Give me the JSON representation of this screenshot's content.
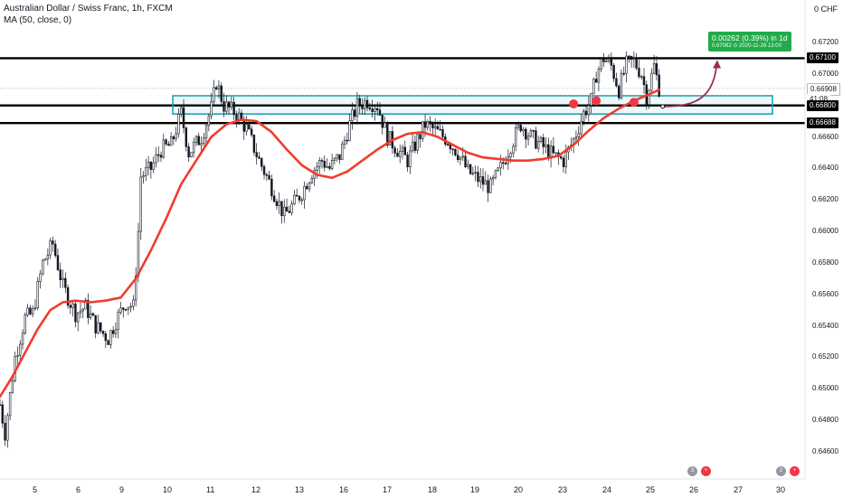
{
  "header": {
    "title": "Australian Dollar / Swiss Franc, 1h, FXCM",
    "indicator": "MA (50, close, 0)",
    "currency": "0 CHF"
  },
  "colors": {
    "up": "#131722",
    "ma": "#f23b2e",
    "zone": "#25a3b0",
    "arrow": "#9c2a5a",
    "green_tag": "#22ab4b"
  },
  "callout": {
    "line1": "0.00262 (0.39%) in 1d",
    "line2": "0.67082 ⊙ 2020-11-26 13:00"
  },
  "price_tags": [
    {
      "value": "0.67100",
      "kind": "level"
    },
    {
      "value": "0.66908",
      "kind": "last"
    },
    {
      "value": "41:08",
      "kind": "timer"
    },
    {
      "value": "0.66800",
      "kind": "level"
    },
    {
      "value": "0.66688",
      "kind": "level"
    }
  ],
  "events": [
    {
      "day": "26",
      "count": "3"
    },
    {
      "day": "30",
      "count": "2"
    }
  ],
  "chart_data": {
    "type": "candlestick",
    "title": "Australian Dollar / Swiss Franc, 1h, FXCM",
    "ylim": [
      0.6458,
      0.673
    ],
    "yticks": [
      "0.67200",
      "0.67000",
      "0.66800",
      "0.66600",
      "0.66400",
      "0.66200",
      "0.66000",
      "0.65800",
      "0.65600",
      "0.65400",
      "0.65200",
      "0.65000",
      "0.64800",
      "0.64600"
    ],
    "xticks": [
      "5",
      "6",
      "9",
      "10",
      "11",
      "12",
      "13",
      "16",
      "17",
      "18",
      "19",
      "20",
      "23",
      "24",
      "25",
      "26",
      "27",
      "30"
    ],
    "horizontal_levels": [
      0.671,
      0.668,
      0.66688
    ],
    "zone": [
      0.6678,
      0.6685
    ],
    "last_price": 0.66908,
    "target_price": 0.67082,
    "price_path": [
      [
        0,
        0.649
      ],
      [
        2,
        0.6472
      ],
      [
        6,
        0.652
      ],
      [
        10,
        0.6545
      ],
      [
        13,
        0.6548
      ],
      [
        17,
        0.658
      ],
      [
        21,
        0.6592
      ],
      [
        25,
        0.6565
      ],
      [
        30,
        0.6548
      ],
      [
        34,
        0.6552
      ],
      [
        38,
        0.654
      ],
      [
        43,
        0.6532
      ],
      [
        46,
        0.6543
      ],
      [
        50,
        0.6555
      ],
      [
        53,
        0.6552
      ],
      [
        55,
        0.66
      ],
      [
        56,
        0.6635
      ],
      [
        60,
        0.664
      ],
      [
        64,
        0.6652
      ],
      [
        68,
        0.6655
      ],
      [
        72,
        0.6675
      ],
      [
        75,
        0.665
      ],
      [
        80,
        0.666
      ],
      [
        84,
        0.6678
      ],
      [
        86,
        0.6695
      ],
      [
        89,
        0.668
      ],
      [
        94,
        0.6675
      ],
      [
        98,
        0.6665
      ],
      [
        103,
        0.6645
      ],
      [
        108,
        0.6628
      ],
      [
        113,
        0.661
      ],
      [
        117,
        0.6618
      ],
      [
        120,
        0.6625
      ],
      [
        124,
        0.6638
      ],
      [
        128,
        0.6645
      ],
      [
        131,
        0.664
      ],
      [
        135,
        0.6648
      ],
      [
        139,
        0.6668
      ],
      [
        142,
        0.668
      ],
      [
        146,
        0.6683
      ],
      [
        150,
        0.668
      ],
      [
        154,
        0.666
      ],
      [
        158,
        0.6652
      ],
      [
        162,
        0.6645
      ],
      [
        165,
        0.6655
      ],
      [
        169,
        0.6668
      ],
      [
        173,
        0.6664
      ],
      [
        178,
        0.6658
      ],
      [
        182,
        0.665
      ],
      [
        186,
        0.6638
      ],
      [
        191,
        0.6632
      ],
      [
        195,
        0.6628
      ],
      [
        199,
        0.664
      ],
      [
        203,
        0.6655
      ],
      [
        207,
        0.6668
      ],
      [
        211,
        0.666
      ],
      [
        215,
        0.6655
      ],
      [
        220,
        0.6648
      ],
      [
        224,
        0.6645
      ],
      [
        228,
        0.6658
      ],
      [
        232,
        0.6675
      ],
      [
        235,
        0.6683
      ],
      [
        237,
        0.67
      ],
      [
        240,
        0.671
      ],
      [
        243,
        0.6705
      ],
      [
        246,
        0.669
      ],
      [
        249,
        0.6706
      ],
      [
        252,
        0.6708
      ],
      [
        255,
        0.67
      ],
      [
        257,
        0.6686
      ],
      [
        260,
        0.6705
      ],
      [
        262,
        0.6691
      ]
    ],
    "ma_path": [
      [
        0,
        0.6495
      ],
      [
        5,
        0.6508
      ],
      [
        10,
        0.6523
      ],
      [
        15,
        0.6538
      ],
      [
        20,
        0.655
      ],
      [
        25,
        0.6555
      ],
      [
        30,
        0.6556
      ],
      [
        36,
        0.6555
      ],
      [
        42,
        0.6556
      ],
      [
        48,
        0.6558
      ],
      [
        54,
        0.657
      ],
      [
        60,
        0.6588
      ],
      [
        66,
        0.6608
      ],
      [
        72,
        0.663
      ],
      [
        78,
        0.6645
      ],
      [
        84,
        0.666
      ],
      [
        90,
        0.6668
      ],
      [
        96,
        0.6671
      ],
      [
        102,
        0.667
      ],
      [
        108,
        0.6663
      ],
      [
        114,
        0.6652
      ],
      [
        120,
        0.6642
      ],
      [
        126,
        0.6636
      ],
      [
        132,
        0.6634
      ],
      [
        138,
        0.6638
      ],
      [
        144,
        0.6645
      ],
      [
        150,
        0.6652
      ],
      [
        156,
        0.6658
      ],
      [
        162,
        0.6662
      ],
      [
        168,
        0.6663
      ],
      [
        174,
        0.666
      ],
      [
        180,
        0.6655
      ],
      [
        186,
        0.665
      ],
      [
        192,
        0.6647
      ],
      [
        198,
        0.6646
      ],
      [
        204,
        0.6645
      ],
      [
        210,
        0.6645
      ],
      [
        216,
        0.6646
      ],
      [
        222,
        0.6648
      ],
      [
        228,
        0.6655
      ],
      [
        234,
        0.6664
      ],
      [
        240,
        0.6672
      ],
      [
        246,
        0.6678
      ],
      [
        252,
        0.6683
      ],
      [
        258,
        0.6687
      ],
      [
        262,
        0.669
      ]
    ],
    "x_range": [
      0,
      320
    ],
    "break_markers": [
      [
        228,
        0.6681
      ],
      [
        237,
        0.6683
      ],
      [
        252,
        0.6682
      ]
    ]
  }
}
